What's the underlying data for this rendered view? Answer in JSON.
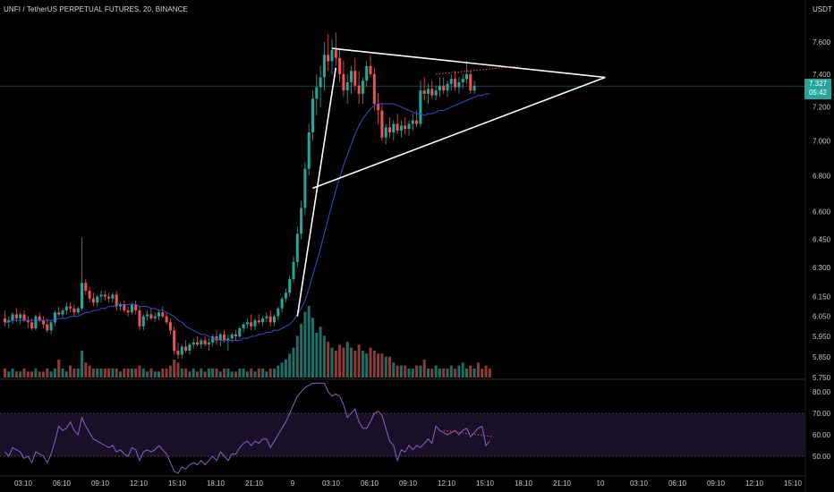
{
  "header": {
    "title": "UNFI / TetherUS PERPETUAL FUTURES, 20, BINANCE",
    "axis_unit": "USDT"
  },
  "last_price": {
    "value": "7.327",
    "countdown": "05:42"
  },
  "colors": {
    "background": "#000000",
    "up": "#26a69a",
    "down": "#ef5350",
    "ma": "#2e4fd0",
    "rsi": "#8a5fc7",
    "rsi_band": "#1a0f29",
    "trendline": "#ffffff",
    "dotted": "#ef5350",
    "grid": "#161616",
    "axis_text": "#c8c8c8"
  },
  "chart_data": [
    {
      "type": "candlestick",
      "title": "UNFI / TetherUS PERPETUAL FUTURES, 20, BINANCE",
      "ylabel": "USDT",
      "log_scale": true,
      "y_ticks": [
        "7.600",
        "7.400",
        "7.200",
        "7.000",
        "6.800",
        "6.600",
        "6.450",
        "6.300",
        "6.150",
        "6.050",
        "5.950",
        "5.850",
        "5.750"
      ],
      "x_ticks": [
        "03:10",
        "06:10",
        "09:10",
        "12:10",
        "15:10",
        "18:10",
        "21:10",
        "9",
        "03:10",
        "06:10",
        "09:10",
        "12:10",
        "15:10",
        "18:10",
        "21:10",
        "10",
        "03:10",
        "06:10",
        "09:10",
        "12:10",
        "15:10"
      ],
      "candles": [
        [
          6.04,
          6.08,
          6.0,
          6.02
        ],
        [
          6.02,
          6.05,
          5.99,
          6.03
        ],
        [
          6.03,
          6.07,
          6.01,
          6.06
        ],
        [
          6.06,
          6.09,
          6.02,
          6.04
        ],
        [
          6.04,
          6.07,
          6.01,
          6.06
        ],
        [
          6.06,
          6.08,
          6.02,
          6.03
        ],
        [
          6.03,
          6.05,
          5.99,
          6.02
        ],
        [
          6.02,
          6.04,
          5.98,
          5.99
        ],
        [
          5.99,
          6.06,
          5.98,
          6.05
        ],
        [
          6.05,
          6.07,
          6.02,
          6.03
        ],
        [
          6.03,
          6.05,
          5.99,
          6.01
        ],
        [
          6.01,
          6.04,
          5.97,
          5.98
        ],
        [
          5.98,
          6.03,
          5.96,
          6.02
        ],
        [
          6.02,
          6.08,
          6.0,
          6.07
        ],
        [
          6.07,
          6.1,
          6.05,
          6.06
        ],
        [
          6.06,
          6.09,
          6.04,
          6.08
        ],
        [
          6.08,
          6.12,
          6.06,
          6.1
        ],
        [
          6.1,
          6.12,
          6.07,
          6.09
        ],
        [
          6.09,
          6.11,
          6.05,
          6.07
        ],
        [
          6.07,
          6.1,
          6.06,
          6.09
        ],
        [
          6.09,
          6.46,
          6.08,
          6.22
        ],
        [
          6.22,
          6.24,
          6.16,
          6.18
        ],
        [
          6.18,
          6.2,
          6.12,
          6.14
        ],
        [
          6.14,
          6.17,
          6.1,
          6.12
        ],
        [
          6.12,
          6.16,
          6.1,
          6.15
        ],
        [
          6.15,
          6.18,
          6.12,
          6.16
        ],
        [
          6.16,
          6.18,
          6.13,
          6.15
        ],
        [
          6.15,
          6.17,
          6.12,
          6.14
        ],
        [
          6.14,
          6.17,
          6.12,
          6.16
        ],
        [
          6.16,
          6.18,
          6.08,
          6.1
        ],
        [
          6.1,
          6.12,
          6.08,
          6.11
        ],
        [
          6.11,
          6.13,
          6.07,
          6.08
        ],
        [
          6.08,
          6.1,
          6.05,
          6.07
        ],
        [
          6.07,
          6.12,
          6.06,
          6.11
        ],
        [
          6.11,
          6.13,
          6.06,
          6.08
        ],
        [
          6.08,
          6.1,
          5.98,
          6.0
        ],
        [
          6.0,
          6.06,
          5.98,
          6.05
        ],
        [
          6.05,
          6.08,
          6.03,
          6.06
        ],
        [
          6.06,
          6.09,
          6.03,
          6.04
        ],
        [
          6.04,
          6.07,
          6.02,
          6.05
        ],
        [
          6.05,
          6.08,
          6.03,
          6.07
        ],
        [
          6.07,
          6.1,
          6.04,
          6.05
        ],
        [
          6.05,
          6.07,
          6.01,
          6.02
        ],
        [
          6.02,
          6.04,
          5.96,
          5.98
        ],
        [
          5.98,
          6.0,
          5.86,
          5.88
        ],
        [
          5.88,
          5.92,
          5.84,
          5.86
        ],
        [
          5.86,
          5.91,
          5.84,
          5.9
        ],
        [
          5.9,
          5.93,
          5.87,
          5.88
        ],
        [
          5.88,
          5.92,
          5.86,
          5.91
        ],
        [
          5.91,
          5.94,
          5.89,
          5.92
        ],
        [
          5.92,
          5.95,
          5.9,
          5.91
        ],
        [
          5.91,
          5.94,
          5.89,
          5.93
        ],
        [
          5.93,
          5.95,
          5.9,
          5.91
        ],
        [
          5.91,
          5.94,
          5.88,
          5.92
        ],
        [
          5.92,
          5.96,
          5.9,
          5.95
        ],
        [
          5.95,
          5.98,
          5.91,
          5.93
        ],
        [
          5.93,
          5.97,
          5.9,
          5.96
        ],
        [
          5.96,
          5.98,
          5.92,
          5.93
        ],
        [
          5.93,
          5.96,
          5.88,
          5.94
        ],
        [
          5.94,
          5.97,
          5.92,
          5.96
        ],
        [
          5.96,
          5.98,
          5.93,
          5.95
        ],
        [
          5.95,
          6.0,
          5.94,
          5.99
        ],
        [
          5.99,
          6.02,
          5.97,
          6.01
        ],
        [
          6.01,
          6.04,
          5.99,
          6.02
        ],
        [
          6.02,
          6.06,
          5.98,
          6.0
        ],
        [
          6.0,
          6.04,
          5.98,
          6.03
        ],
        [
          6.03,
          6.06,
          6.01,
          6.02
        ],
        [
          6.02,
          6.05,
          6.0,
          6.04
        ],
        [
          6.04,
          6.07,
          6.02,
          6.05
        ],
        [
          6.05,
          6.08,
          6.0,
          6.02
        ],
        [
          6.02,
          6.06,
          6.0,
          6.05
        ],
        [
          6.05,
          6.1,
          6.03,
          6.09
        ],
        [
          6.09,
          6.15,
          6.07,
          6.14
        ],
        [
          6.14,
          6.19,
          6.12,
          6.17
        ],
        [
          6.17,
          6.26,
          6.15,
          6.24
        ],
        [
          6.24,
          6.36,
          6.22,
          6.33
        ],
        [
          6.33,
          6.52,
          6.3,
          6.48
        ],
        [
          6.48,
          6.66,
          6.45,
          6.62
        ],
        [
          6.62,
          6.88,
          6.58,
          6.84
        ],
        [
          6.84,
          7.1,
          6.8,
          7.05
        ],
        [
          7.05,
          7.3,
          7.0,
          7.25
        ],
        [
          7.25,
          7.4,
          7.15,
          7.32
        ],
        [
          7.32,
          7.45,
          7.2,
          7.38
        ],
        [
          7.38,
          7.6,
          7.3,
          7.52
        ],
        [
          7.52,
          7.65,
          7.42,
          7.48
        ],
        [
          7.48,
          7.62,
          7.4,
          7.55
        ],
        [
          7.55,
          7.66,
          7.45,
          7.5
        ],
        [
          7.5,
          7.56,
          7.35,
          7.4
        ],
        [
          7.4,
          7.48,
          7.26,
          7.3
        ],
        [
          7.3,
          7.4,
          7.22,
          7.35
        ],
        [
          7.35,
          7.45,
          7.28,
          7.42
        ],
        [
          7.42,
          7.5,
          7.3,
          7.33
        ],
        [
          7.33,
          7.42,
          7.22,
          7.28
        ],
        [
          7.28,
          7.38,
          7.22,
          7.36
        ],
        [
          7.36,
          7.48,
          7.32,
          7.45
        ],
        [
          7.45,
          7.52,
          7.38,
          7.4
        ],
        [
          7.4,
          7.44,
          7.18,
          7.22
        ],
        [
          7.22,
          7.28,
          7.1,
          7.18
        ],
        [
          7.18,
          7.22,
          7.0,
          7.02
        ],
        [
          7.02,
          7.1,
          6.98,
          7.08
        ],
        [
          7.08,
          7.14,
          7.02,
          7.05
        ],
        [
          7.05,
          7.12,
          7.0,
          7.1
        ],
        [
          7.1,
          7.16,
          7.04,
          7.06
        ],
        [
          7.06,
          7.12,
          7.02,
          7.09
        ],
        [
          7.09,
          7.14,
          7.04,
          7.07
        ],
        [
          7.07,
          7.12,
          7.03,
          7.1
        ],
        [
          7.1,
          7.16,
          7.06,
          7.12
        ],
        [
          7.12,
          7.18,
          7.08,
          7.1
        ],
        [
          7.1,
          7.36,
          7.08,
          7.3
        ],
        [
          7.3,
          7.38,
          7.24,
          7.28
        ],
        [
          7.28,
          7.34,
          7.22,
          7.31
        ],
        [
          7.31,
          7.36,
          7.25,
          7.27
        ],
        [
          7.27,
          7.33,
          7.24,
          7.3
        ],
        [
          7.3,
          7.38,
          7.26,
          7.33
        ],
        [
          7.33,
          7.38,
          7.28,
          7.3
        ],
        [
          7.3,
          7.36,
          7.26,
          7.34
        ],
        [
          7.34,
          7.4,
          7.3,
          7.37
        ],
        [
          7.37,
          7.42,
          7.3,
          7.32
        ],
        [
          7.32,
          7.38,
          7.28,
          7.35
        ],
        [
          7.35,
          7.4,
          7.31,
          7.37
        ],
        [
          7.37,
          7.48,
          7.34,
          7.4
        ],
        [
          7.4,
          7.42,
          7.28,
          7.3
        ],
        [
          7.3,
          7.36,
          7.28,
          7.33
        ]
      ],
      "volume": [
        3,
        2,
        3,
        2,
        2,
        3,
        2,
        2,
        3,
        2,
        2,
        3,
        2,
        3,
        6,
        3,
        2,
        4,
        3,
        3,
        9,
        5,
        4,
        3,
        3,
        3,
        3,
        3,
        3,
        3,
        2,
        3,
        3,
        3,
        3,
        4,
        3,
        2,
        3,
        2,
        2,
        3,
        3,
        4,
        6,
        5,
        3,
        3,
        2,
        3,
        2,
        3,
        2,
        3,
        3,
        3,
        2,
        3,
        3,
        2,
        2,
        3,
        3,
        2,
        3,
        2,
        3,
        3,
        2,
        3,
        3,
        4,
        5,
        6,
        8,
        10,
        14,
        18,
        22,
        24,
        20,
        15,
        17,
        14,
        12,
        10,
        9,
        11,
        10,
        12,
        10,
        9,
        11,
        9,
        8,
        10,
        9,
        8,
        8,
        7,
        7,
        5,
        4,
        4,
        4,
        3,
        3,
        4,
        4,
        6,
        3,
        3,
        4,
        3,
        3,
        3,
        4,
        3,
        4,
        5,
        3,
        4,
        3,
        5,
        3,
        4,
        3
      ],
      "moving_average": {
        "period": 20,
        "values": [
          6.02,
          6.02,
          6.03,
          6.03,
          6.03,
          6.03,
          6.03,
          6.03,
          6.03,
          6.03,
          6.03,
          6.03,
          6.03,
          6.03,
          6.04,
          6.04,
          6.04,
          6.05,
          6.05,
          6.05,
          6.06,
          6.07,
          6.07,
          6.08,
          6.08,
          6.09,
          6.09,
          6.1,
          6.1,
          6.11,
          6.11,
          6.11,
          6.11,
          6.11,
          6.11,
          6.1,
          6.1,
          6.1,
          6.09,
          6.09,
          6.08,
          6.08,
          6.07,
          6.06,
          6.05,
          6.03,
          6.02,
          6.0,
          5.99,
          5.98,
          5.97,
          5.96,
          5.96,
          5.95,
          5.94,
          5.94,
          5.93,
          5.93,
          5.93,
          5.93,
          5.93,
          5.93,
          5.94,
          5.94,
          5.95,
          5.95,
          5.96,
          5.96,
          5.97,
          5.97,
          5.98,
          5.98,
          5.99,
          6.0,
          6.01,
          6.03,
          6.06,
          6.09,
          6.13,
          6.19,
          6.26,
          6.33,
          6.4,
          6.48,
          6.56,
          6.64,
          6.72,
          6.79,
          6.86,
          6.92,
          6.98,
          7.04,
          7.09,
          7.13,
          7.16,
          7.19,
          7.21,
          7.22,
          7.22,
          7.22,
          7.22,
          7.22,
          7.21,
          7.2,
          7.19,
          7.18,
          7.17,
          7.16,
          7.16,
          7.15,
          7.16,
          7.16,
          7.17,
          7.18,
          7.18,
          7.19,
          7.2,
          7.21,
          7.22,
          7.23,
          7.24,
          7.25,
          7.26,
          7.27,
          7.27,
          7.28,
          7.28
        ]
      }
    },
    {
      "type": "line",
      "title": "",
      "y_ticks": [
        "80.00",
        "70.00",
        "60.00",
        "50.00"
      ],
      "ylim": [
        45,
        85
      ],
      "band": [
        50,
        70
      ],
      "rsi": [
        52,
        50,
        54,
        53,
        52,
        49,
        50,
        47,
        52,
        51,
        50,
        47,
        51,
        57,
        64,
        62,
        63,
        66,
        62,
        60,
        68,
        64,
        61,
        58,
        57,
        56,
        55,
        54,
        55,
        52,
        53,
        51,
        50,
        54,
        53,
        48,
        52,
        53,
        52,
        53,
        55,
        53,
        51,
        47,
        43,
        42,
        45,
        44,
        46,
        47,
        46,
        48,
        46,
        48,
        50,
        48,
        52,
        50,
        48,
        51,
        51,
        54,
        56,
        57,
        55,
        57,
        56,
        58,
        58,
        54,
        57,
        60,
        63,
        66,
        70,
        74,
        78,
        80,
        82,
        83,
        84,
        84,
        84,
        84,
        80,
        78,
        79,
        78,
        74,
        68,
        70,
        72,
        66,
        63,
        63,
        66,
        70,
        71,
        69,
        63,
        57,
        55,
        48,
        53,
        52,
        55,
        53,
        55,
        54,
        56,
        58,
        56,
        64,
        62,
        61,
        60,
        61,
        62,
        60,
        62,
        63,
        59,
        61,
        63,
        64,
        55,
        57
      ]
    }
  ],
  "annotations": {
    "trendlines": [
      {
        "name": "triangle-upper",
        "from": [
          85,
          7.56
        ],
        "to": [
          156,
          7.38
        ]
      },
      {
        "name": "triangle-lower",
        "from": [
          80,
          6.73
        ],
        "to": [
          156,
          7.38
        ]
      },
      {
        "name": "flagpole",
        "from": [
          76,
          6.05
        ],
        "to": [
          86,
          7.44
        ]
      }
    ]
  }
}
